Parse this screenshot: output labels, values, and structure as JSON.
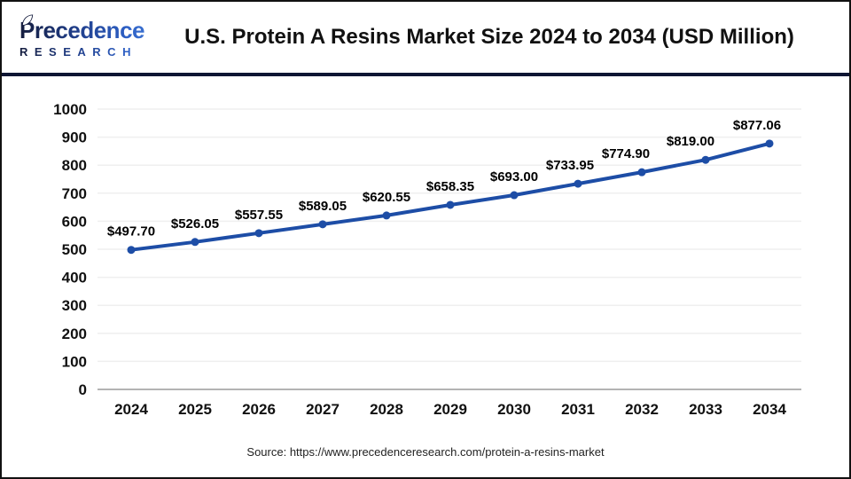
{
  "header": {
    "logo": {
      "name": "Precedence",
      "subname": "RESEARCH"
    }
  },
  "chart_data": {
    "type": "line",
    "title": "U.S. Protein A Resins Market Size 2024 to 2034 (USD Million)",
    "categories": [
      "2024",
      "2025",
      "2026",
      "2027",
      "2028",
      "2029",
      "2030",
      "2031",
      "2032",
      "2033",
      "2034"
    ],
    "values": [
      497.7,
      526.05,
      557.55,
      589.05,
      620.55,
      658.35,
      693.0,
      733.95,
      774.9,
      819.0,
      877.06
    ],
    "point_labels": [
      "$497.70",
      "$526.05",
      "$557.55",
      "$589.05",
      "$620.55",
      "$658.35",
      "$693.00",
      "$733.95",
      "$774.90",
      "$819.00",
      "$877.06"
    ],
    "xlabel": "",
    "ylabel": "",
    "ylim": [
      0,
      1000
    ],
    "ytick_interval": 100,
    "grid": true,
    "legend": "none",
    "line_color": "#1d4da6",
    "marker": "circle"
  },
  "footer": {
    "source": "Source: https://www.precedenceresearch.com/protein-a-resins-market"
  },
  "colors": {
    "accent_line": "#1d4da6",
    "header_rule": "#0e1533",
    "grid_line": "#efefef",
    "axis_line": "#b3b3b3",
    "text": "#111111",
    "source_text": "#222222"
  }
}
